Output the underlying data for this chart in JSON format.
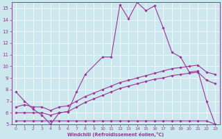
{
  "xlabel": "Windchill (Refroidissement éolien,°C)",
  "background_color": "#cce8ee",
  "line_color": "#993399",
  "xlim": [
    -0.5,
    23.5
  ],
  "ylim": [
    5,
    15.5
  ],
  "yticks": [
    5,
    6,
    7,
    8,
    9,
    10,
    11,
    12,
    13,
    14,
    15
  ],
  "xticks": [
    0,
    1,
    2,
    3,
    4,
    5,
    6,
    7,
    8,
    9,
    10,
    11,
    12,
    13,
    14,
    15,
    16,
    17,
    18,
    19,
    20,
    21,
    22,
    23
  ],
  "series1_x": [
    0,
    1,
    2,
    3,
    4,
    5,
    6,
    7,
    8,
    10,
    11,
    12,
    13,
    14,
    15,
    16,
    17,
    18,
    19,
    20,
    21,
    22,
    23
  ],
  "series1_y": [
    7.8,
    7.0,
    6.3,
    5.8,
    5.0,
    6.0,
    6.1,
    7.8,
    9.3,
    10.8,
    10.8,
    15.3,
    14.1,
    15.5,
    14.8,
    15.2,
    13.3,
    11.2,
    10.8,
    9.5,
    9.6,
    7.0,
    5.0
  ],
  "series2_x": [
    0,
    1,
    2,
    3,
    4,
    5,
    6,
    7,
    8,
    9,
    10,
    11,
    12,
    13,
    14,
    15,
    16,
    17,
    18,
    19,
    20,
    21,
    22,
    23
  ],
  "series2_y": [
    5.3,
    5.3,
    5.3,
    5.3,
    5.3,
    5.3,
    5.3,
    5.3,
    5.3,
    5.3,
    5.3,
    5.3,
    5.3,
    5.3,
    5.3,
    5.3,
    5.3,
    5.3,
    5.3,
    5.3,
    5.3,
    5.3,
    5.3,
    5.0
  ],
  "series3_x": [
    0,
    1,
    2,
    3,
    4,
    5,
    6,
    7,
    8,
    9,
    10,
    11,
    12,
    13,
    14,
    15,
    16,
    17,
    18,
    19,
    20,
    21,
    22,
    23
  ],
  "series3_y": [
    6.5,
    6.7,
    6.5,
    6.5,
    6.2,
    6.5,
    6.6,
    7.0,
    7.4,
    7.7,
    8.0,
    8.3,
    8.6,
    8.8,
    9.0,
    9.2,
    9.4,
    9.6,
    9.8,
    9.9,
    10.0,
    10.1,
    9.5,
    9.3
  ],
  "series4_x": [
    0,
    1,
    2,
    3,
    4,
    5,
    6,
    7,
    8,
    9,
    10,
    11,
    12,
    13,
    14,
    15,
    16,
    17,
    18,
    19,
    20,
    21,
    22,
    23
  ],
  "series4_y": [
    6.0,
    6.0,
    6.0,
    6.0,
    5.8,
    6.0,
    6.1,
    6.5,
    6.9,
    7.2,
    7.5,
    7.8,
    8.1,
    8.3,
    8.5,
    8.7,
    8.9,
    9.0,
    9.2,
    9.3,
    9.4,
    9.5,
    8.8,
    8.5
  ]
}
